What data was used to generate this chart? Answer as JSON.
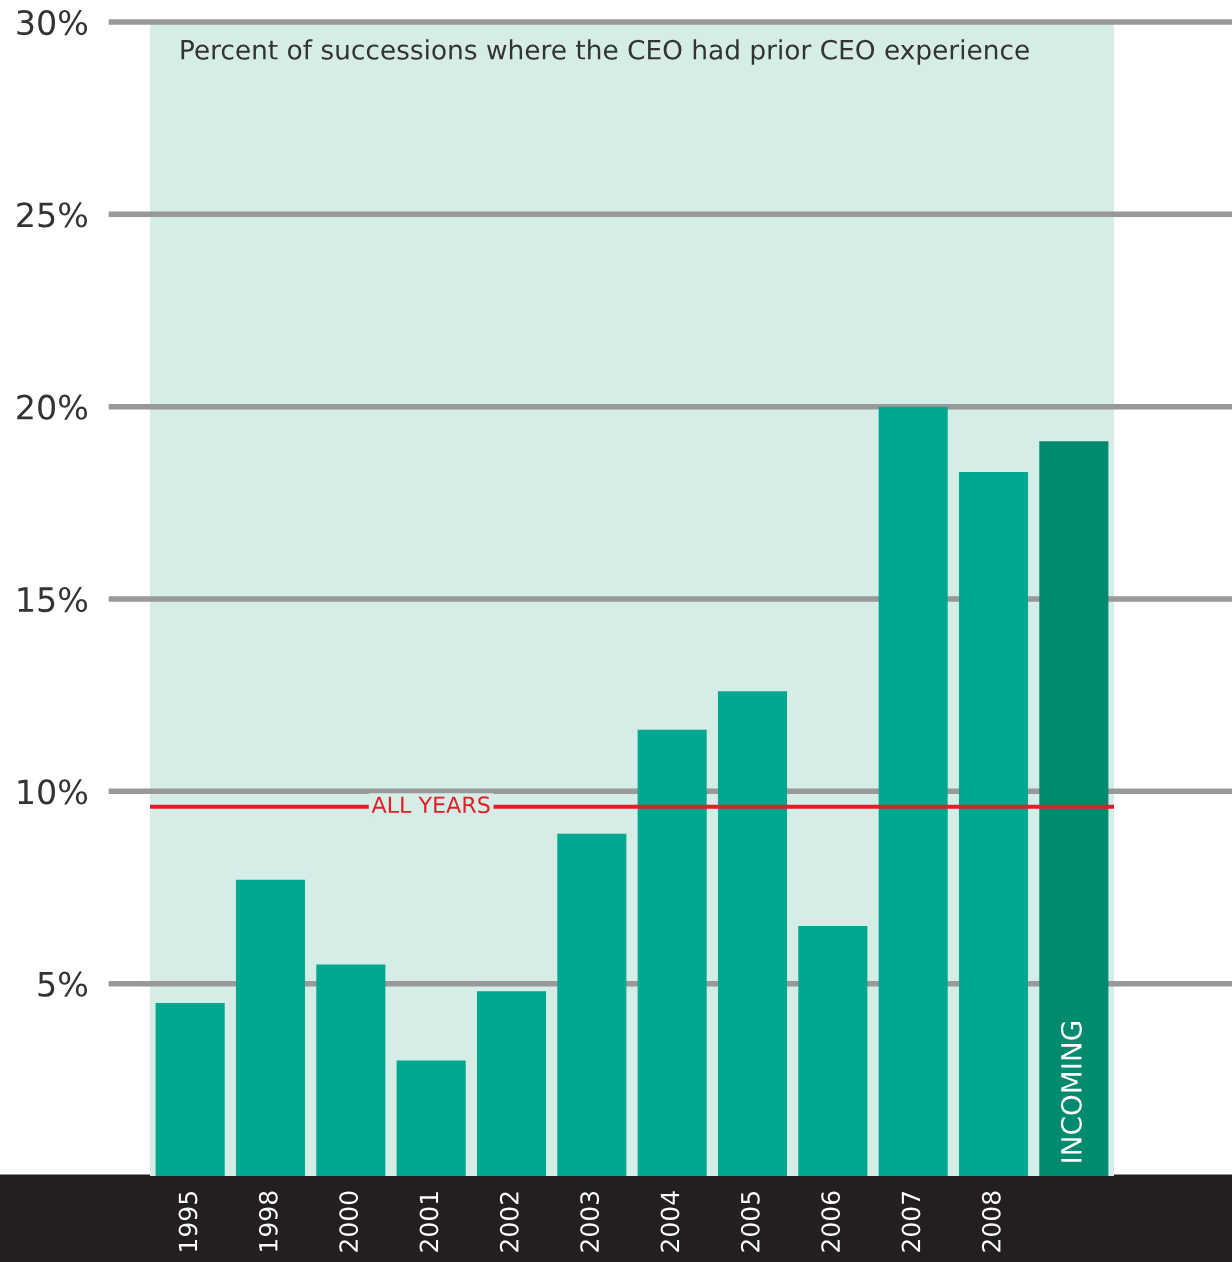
{
  "chart_data": {
    "type": "bar",
    "title": "Percent of successions where the CEO had prior CEO experience",
    "categories": [
      "1995",
      "1998",
      "2000",
      "2001",
      "2002",
      "2003",
      "2004",
      "2005",
      "2006",
      "2007",
      "2008",
      null
    ],
    "values": [
      4.5,
      7.7,
      5.5,
      3.0,
      4.8,
      8.9,
      11.6,
      12.6,
      6.5,
      20.0,
      18.3,
      19.1
    ],
    "colors": [
      "#00a88f",
      "#00a88f",
      "#00a88f",
      "#00a88f",
      "#00a88f",
      "#00a88f",
      "#00a88f",
      "#00a88f",
      "#00a88f",
      "#00a88f",
      "#00a88f",
      "#008b6f"
    ],
    "ylim": [
      0,
      30
    ],
    "yticks": [
      {
        "value": 5,
        "label": "5%"
      },
      {
        "value": 10,
        "label": "10%"
      },
      {
        "value": 15,
        "label": "15%"
      },
      {
        "value": 20,
        "label": "20%"
      },
      {
        "value": 25,
        "label": "25%"
      },
      {
        "value": 30,
        "label": "30%"
      }
    ],
    "grid": "y",
    "ref_lines": [
      {
        "axis": "y",
        "value": 9.6,
        "label": "ALL YEARS",
        "color": "#e31e24"
      }
    ],
    "annotations": [
      "INCOMING"
    ]
  }
}
